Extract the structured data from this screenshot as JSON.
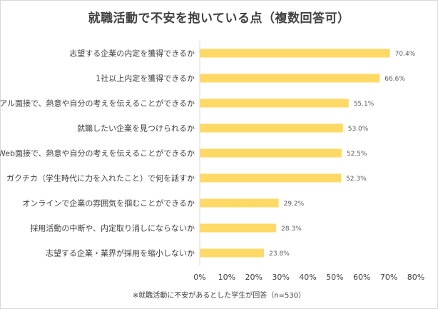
{
  "chart_data": {
    "type": "bar",
    "orientation": "horizontal",
    "title": "就職活動で不安を抱いている点（複数回答可）",
    "note": "※就職活動に不安があるとした学生が回答（n=530）",
    "categories": [
      "志望する企業の内定を獲得できるか",
      "1社以上内定を獲得できるか",
      "リアル面接で、熱意や自分の考えを伝えることができるか",
      "就職したい企業を見つけられるか",
      "Web面接で、熱意や自分の考えを伝えることができるか",
      "ガクチカ（学生時代に力を入れたこと）で何を話すか",
      "オンラインで企業の雰囲気を掴むことができるか",
      "採用活動の中断や、内定取り消しにならないか",
      "志望する企業・業界が採用を縮小しないか"
    ],
    "values": [
      70.4,
      66.6,
      55.1,
      53.0,
      52.5,
      52.3,
      29.2,
      28.3,
      23.8
    ],
    "value_labels": [
      "70.4%",
      "66.6%",
      "55.1%",
      "53.0%",
      "52.5%",
      "52.3%",
      "29.2%",
      "28.3%",
      "23.8%"
    ],
    "xlim": [
      0,
      80
    ],
    "x_ticks": [
      0,
      10,
      20,
      30,
      40,
      50,
      60,
      70,
      80
    ],
    "x_tick_labels": [
      "0%",
      "10%",
      "20%",
      "30%",
      "40%",
      "50%",
      "60%",
      "70%",
      "80%"
    ],
    "grid": false,
    "legend": "none",
    "bar_color": "#ffd966",
    "axis_color": "#d9d9d9"
  }
}
